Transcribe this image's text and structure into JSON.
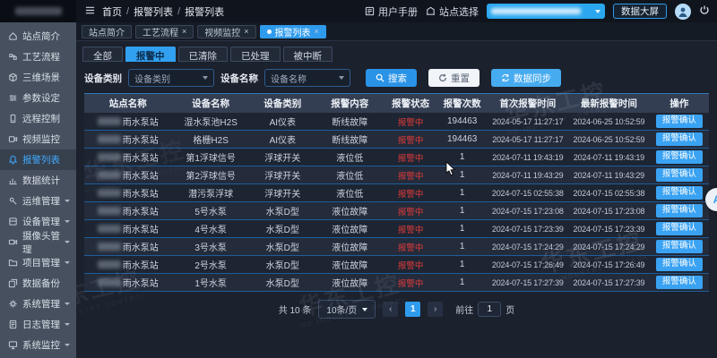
{
  "watermark": {
    "cn": "华东工控",
    "en": "HD INDUSTRY CONTROL"
  },
  "header": {
    "breadcrumb": [
      "首页",
      "报警列表",
      "报警列表"
    ],
    "user_manual": "用户手册",
    "site_select_label": "站点选择",
    "data_screen_button": "数据大屏"
  },
  "sidebar": {
    "items": [
      {
        "label": "站点简介",
        "icon": "site-intro-icon",
        "active": false,
        "expandable": false
      },
      {
        "label": "工艺流程",
        "icon": "process-flow-icon",
        "active": false,
        "expandable": false
      },
      {
        "label": "三维场景",
        "icon": "3d-scene-icon",
        "active": false,
        "expandable": false
      },
      {
        "label": "参数设定",
        "icon": "parameter-setting-icon",
        "active": false,
        "expandable": false
      },
      {
        "label": "远程控制",
        "icon": "remote-control-icon",
        "active": false,
        "expandable": false
      },
      {
        "label": "视频监控",
        "icon": "video-monitor-icon",
        "active": false,
        "expandable": false
      },
      {
        "label": "报警列表",
        "icon": "alarm-list-icon",
        "active": true,
        "expandable": false
      },
      {
        "label": "数据统计",
        "icon": "data-statistics-icon",
        "active": false,
        "expandable": false
      },
      {
        "label": "运维管理",
        "icon": "ops-management-icon",
        "active": false,
        "expandable": true
      },
      {
        "label": "设备管理",
        "icon": "device-management-icon",
        "active": false,
        "expandable": true
      },
      {
        "label": "摄像头管理",
        "icon": "camera-management-icon",
        "active": false,
        "expandable": true
      },
      {
        "label": "项目管理",
        "icon": "project-management-icon",
        "active": false,
        "expandable": true
      },
      {
        "label": "数据备份",
        "icon": "data-backup-icon",
        "active": false,
        "expandable": false
      },
      {
        "label": "系统管理",
        "icon": "system-management-icon",
        "active": false,
        "expandable": true
      },
      {
        "label": "日志管理",
        "icon": "log-management-icon",
        "active": false,
        "expandable": true
      },
      {
        "label": "系统监控",
        "icon": "system-monitor-icon",
        "active": false,
        "expandable": true
      }
    ]
  },
  "page_tabs": [
    {
      "label": "站点简介",
      "active": false,
      "closable": false
    },
    {
      "label": "工艺流程",
      "active": false,
      "closable": true
    },
    {
      "label": "视频监控",
      "active": false,
      "closable": true
    },
    {
      "label": "报警列表",
      "active": true,
      "closable": true
    }
  ],
  "status_tabs": [
    {
      "label": "全部",
      "active": false
    },
    {
      "label": "报警中",
      "active": true
    },
    {
      "label": "已清除",
      "active": false
    },
    {
      "label": "已处理",
      "active": false
    },
    {
      "label": "被中断",
      "active": false
    }
  ],
  "filters": {
    "category_label": "设备类别",
    "category_value": "设备类别",
    "name_label": "设备名称",
    "name_value": "设备名称",
    "search_button": "搜索",
    "reset_button": "重置",
    "sync_button": "数据同步"
  },
  "table": {
    "headers": [
      "站点名称",
      "设备名称",
      "设备类别",
      "报警内容",
      "报警状态",
      "报警次数",
      "首次报警时间",
      "最新报警时间",
      "操作"
    ],
    "action_label": "报警确认",
    "rows": [
      {
        "station": "雨水泵站",
        "device": "湿水泵池H2S",
        "category": "AI仪表",
        "content": "断线故障",
        "status": "报警中",
        "count": "194463",
        "first_time": "2024-05-17 11:27:17",
        "latest_time": "2024-06-25 10:52:59"
      },
      {
        "station": "雨水泵站",
        "device": "格栅H2S",
        "category": "AI仪表",
        "content": "断线故障",
        "status": "报警中",
        "count": "194463",
        "first_time": "2024-05-17 11:27:17",
        "latest_time": "2024-06-25 10:52:59"
      },
      {
        "station": "雨水泵站",
        "device": "第1浮球信号",
        "category": "浮球开关",
        "content": "液位低",
        "status": "报警中",
        "count": "1",
        "first_time": "2024-07-11 19:43:19",
        "latest_time": "2024-07-11 19:43:19"
      },
      {
        "station": "雨水泵站",
        "device": "第2浮球信号",
        "category": "浮球开关",
        "content": "液位低",
        "status": "报警中",
        "count": "1",
        "first_time": "2024-07-11 19:43:29",
        "latest_time": "2024-07-11 19:43:29"
      },
      {
        "station": "雨水泵站",
        "device": "潜污泵浮球",
        "category": "浮球开关",
        "content": "液位低",
        "status": "报警中",
        "count": "1",
        "first_time": "2024-07-15 02:55:38",
        "latest_time": "2024-07-15 02:55:38"
      },
      {
        "station": "雨水泵站",
        "device": "5号水泵",
        "category": "水泵D型",
        "content": "液位故障",
        "status": "报警中",
        "count": "1",
        "first_time": "2024-07-15 17:23:08",
        "latest_time": "2024-07-15 17:23:08"
      },
      {
        "station": "雨水泵站",
        "device": "4号水泵",
        "category": "水泵D型",
        "content": "液位故障",
        "status": "报警中",
        "count": "1",
        "first_time": "2024-07-15 17:23:39",
        "latest_time": "2024-07-15 17:23:39"
      },
      {
        "station": "雨水泵站",
        "device": "3号水泵",
        "category": "水泵D型",
        "content": "液位故障",
        "status": "报警中",
        "count": "1",
        "first_time": "2024-07-15 17:24:29",
        "latest_time": "2024-07-15 17:24:29"
      },
      {
        "station": "雨水泵站",
        "device": "2号水泵",
        "category": "水泵D型",
        "content": "液位故障",
        "status": "报警中",
        "count": "1",
        "first_time": "2024-07-15 17:26:49",
        "latest_time": "2024-07-15 17:26:49"
      },
      {
        "station": "雨水泵站",
        "device": "1号水泵",
        "category": "水泵D型",
        "content": "液位故障",
        "status": "报警中",
        "count": "1",
        "first_time": "2024-07-15 17:27:39",
        "latest_time": "2024-07-15 17:27:39"
      }
    ]
  },
  "pagination": {
    "total_text": "共 10 条",
    "page_size": "10条/页",
    "prev": "‹",
    "current_page": "1",
    "next": "›",
    "goto_label": "前往",
    "goto_value": "1",
    "page_label": "页"
  },
  "assistant_button": "A",
  "colors": {
    "accent": "#2f9bed",
    "alarm_red": "#e23b3b",
    "sidebar_bg": "#46505f"
  }
}
